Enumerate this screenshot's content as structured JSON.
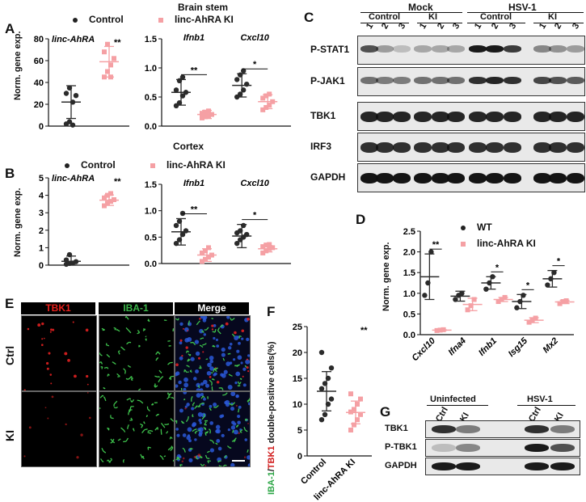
{
  "panel_letters": {
    "A": "A",
    "B": "B",
    "C": "C",
    "D": "D",
    "E": "E",
    "F": "F",
    "G": "G"
  },
  "panel_a": {
    "section_title": "Brain stem",
    "legend": {
      "control": "Control",
      "ki": "linc-AhRA KI"
    },
    "ylabel": "Norm. gene exp."
  },
  "panel_b": {
    "section_title": "Cortex",
    "legend": {
      "control": "Control",
      "ki": "linc-AhRA KI"
    },
    "ylabel": "Norm. gene exp."
  },
  "panel_c": {
    "group_mock": "Mock",
    "group_hsv": "HSV-1",
    "sub_control": "Control",
    "sub_ki": "KI",
    "lanes": [
      "1",
      "2",
      "3",
      "1",
      "2",
      "3",
      "1",
      "2",
      "3",
      "1",
      "2",
      "3"
    ],
    "blots": [
      "P-STAT1",
      "P-JAK1",
      "TBK1",
      "IRF3",
      "GAPDH"
    ]
  },
  "panel_e": {
    "channels": [
      "TBK1",
      "IBA-1",
      "Merge"
    ],
    "channel_colors": [
      "#e8201c",
      "#3bb54a",
      "#ffffff"
    ],
    "rows": [
      "Ctrl",
      "KI"
    ]
  },
  "panel_f": {
    "ylabel_parts": [
      "IBA-1",
      "/",
      "TBK1",
      " double-positive cells(%)"
    ],
    "ylabel_colors": [
      "#2aa544",
      "#111111",
      "#d11a1a",
      "#111111"
    ]
  },
  "panel_g": {
    "group_uninfected": "Uninfected",
    "group_hsv": "HSV-1",
    "lanes": [
      "Ctrl",
      "KI",
      "Ctrl",
      "KI"
    ],
    "blots": [
      "TBK1",
      "P-TBK1",
      "GAPDH"
    ]
  },
  "chart_data": [
    {
      "id": "A-left",
      "type": "scatter",
      "title": "linc-AhRA",
      "categories": [
        "Control",
        "linc-AhRA KI"
      ],
      "ylim": [
        0,
        80
      ],
      "yticks": [
        0,
        20,
        40,
        60,
        80
      ],
      "ylabel": "Norm. gene exp.",
      "series": [
        {
          "name": "Control",
          "values": [
            [
              2,
              4,
              22,
              28,
              30,
              35,
              1
            ]
          ],
          "mean": [
            22
          ],
          "sd": [
            15
          ]
        },
        {
          "name": "linc-AhRA KI",
          "values": [
            [
              45,
              50,
              56,
              62,
              68,
              75,
              45
            ]
          ],
          "mean": [
            59
          ],
          "sd": [
            14
          ]
        }
      ],
      "significance": [
        "**"
      ]
    },
    {
      "id": "A-right",
      "type": "scatter",
      "categories": [
        "Ifnb1",
        "Cxcl10"
      ],
      "ylim": [
        0,
        1.5
      ],
      "yticks": [
        0.0,
        0.5,
        1.0,
        1.5
      ],
      "series": [
        {
          "name": "Control",
          "values": [
            [
              0.35,
              0.4,
              0.52,
              0.58,
              0.62,
              0.78,
              0.84
            ],
            [
              0.5,
              0.55,
              0.62,
              0.72,
              0.8,
              0.88,
              0.95
            ]
          ],
          "mean": [
            0.58,
            0.7
          ],
          "sd": [
            0.22,
            0.2
          ]
        },
        {
          "name": "linc-AhRA KI",
          "values": [
            [
              0.14,
              0.16,
              0.18,
              0.2,
              0.22,
              0.24,
              0.26
            ],
            [
              0.28,
              0.32,
              0.36,
              0.42,
              0.48,
              0.52,
              0.55
            ]
          ],
          "mean": [
            0.2,
            0.42
          ],
          "sd": [
            0.07,
            0.12
          ]
        }
      ],
      "significance": [
        "**",
        "*"
      ]
    },
    {
      "id": "B-left",
      "type": "scatter",
      "title": "linc-AhRA",
      "categories": [
        "Control",
        "linc-AhRA KI"
      ],
      "ylim": [
        0,
        5
      ],
      "yticks": [
        0,
        1,
        2,
        3,
        4,
        5
      ],
      "ylabel": "Norm. gene exp.",
      "series": [
        {
          "name": "Control",
          "values": [
            [
              0.05,
              0.1,
              0.12,
              0.2,
              0.3,
              0.6
            ]
          ],
          "mean": [
            0.22
          ],
          "sd": [
            0.3
          ]
        },
        {
          "name": "linc-AhRA KI",
          "values": [
            [
              3.4,
              3.55,
              3.65,
              3.75,
              3.85,
              4.0,
              4.1
            ]
          ],
          "mean": [
            3.72
          ],
          "sd": [
            0.3
          ]
        }
      ],
      "significance": [
        "**"
      ]
    },
    {
      "id": "B-right",
      "type": "scatter",
      "categories": [
        "Ifnb1",
        "Cxcl10"
      ],
      "ylim": [
        0,
        1.5
      ],
      "yticks": [
        0.0,
        0.5,
        1.0,
        1.5
      ],
      "series": [
        {
          "name": "Control",
          "values": [
            [
              0.38,
              0.45,
              0.55,
              0.62,
              0.72,
              0.8,
              0.95
            ],
            [
              0.38,
              0.45,
              0.5,
              0.55,
              0.58,
              0.62,
              0.72
            ]
          ],
          "mean": [
            0.6,
            0.52
          ],
          "sd": [
            0.25,
            0.22
          ]
        },
        {
          "name": "linc-AhRA KI",
          "values": [
            [
              0.04,
              0.08,
              0.12,
              0.16,
              0.2,
              0.24,
              0.3
            ],
            [
              0.2,
              0.24,
              0.28,
              0.3,
              0.32,
              0.35,
              0.36
            ]
          ],
          "mean": [
            0.16,
            0.28
          ],
          "sd": [
            0.12,
            0.06
          ]
        }
      ],
      "significance": [
        "**",
        "*"
      ]
    },
    {
      "id": "D",
      "type": "scatter",
      "categories": [
        "Cxcl10",
        "Ifna4",
        "Ifnb1",
        "Isg15",
        "Mx2"
      ],
      "ylim": [
        0,
        2.5
      ],
      "yticks": [
        0.0,
        0.5,
        1.0,
        1.5,
        2.0,
        2.5
      ],
      "ylabel": "Norm. gene exp.",
      "legend": {
        "wt": "WT",
        "ki": "linc-AhRA KI"
      },
      "series": [
        {
          "name": "WT",
          "values": [
            [
              0.95,
              1.25,
              2.0
            ],
            [
              0.85,
              0.95,
              1.0
            ],
            [
              1.1,
              1.25,
              1.4
            ],
            [
              0.65,
              0.8,
              0.95
            ],
            [
              1.2,
              1.35,
              1.5
            ]
          ],
          "mean": [
            1.4,
            0.93,
            1.25,
            0.8,
            1.35
          ],
          "sd": [
            0.55,
            0.12,
            0.15,
            0.17,
            0.2
          ]
        },
        {
          "name": "linc-AhRA KI",
          "values": [
            [
              0.1,
              0.11,
              0.12
            ],
            [
              0.6,
              0.7,
              0.85
            ],
            [
              0.8,
              0.85,
              0.9
            ],
            [
              0.3,
              0.35,
              0.4
            ],
            [
              0.75,
              0.8,
              0.82
            ]
          ],
          "mean": [
            0.11,
            0.73,
            0.85,
            0.35,
            0.79
          ],
          "sd": [
            0.01,
            0.15,
            0.05,
            0.06,
            0.04
          ]
        }
      ],
      "significance": [
        "**",
        "",
        "*",
        "*",
        "*"
      ]
    },
    {
      "id": "F",
      "type": "scatter",
      "categories": [
        "Control",
        "linc-AhRA KI"
      ],
      "ylim": [
        0,
        25
      ],
      "yticks": [
        0,
        5,
        10,
        15,
        20,
        25
      ],
      "series": [
        {
          "name": "Control",
          "values": [
            [
              7,
              8,
              10,
              11,
              13,
              14,
              15,
              17,
              20
            ]
          ],
          "mean": [
            12.5
          ],
          "sd": [
            3.8
          ]
        },
        {
          "name": "linc-AhRA KI",
          "values": [
            [
              5,
              6,
              7,
              8,
              8.5,
              9,
              10,
              11,
              12
            ]
          ],
          "mean": [
            8.4
          ],
          "sd": [
            2.2
          ]
        }
      ],
      "significance": [
        "**"
      ]
    }
  ]
}
